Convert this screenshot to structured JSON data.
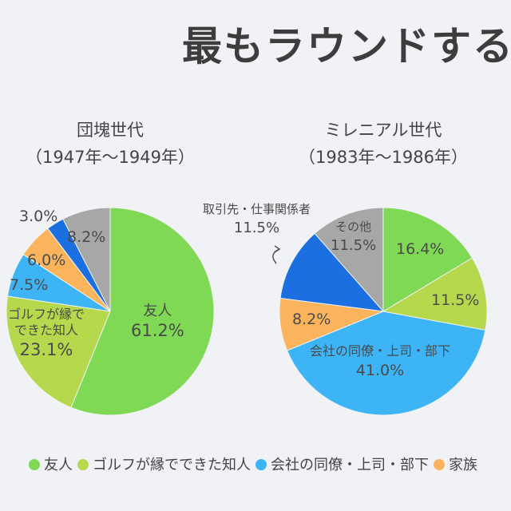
{
  "title": "最もラウンドする",
  "colors": {
    "友人": "#7fd955",
    "ゴルフが縁でできた知人": "#b6d84c",
    "会社の同僚・上司・部下": "#3db4f6",
    "家族": "#fbb45c",
    "取引先・仕事関係者": "#1b6fe0",
    "その他": "#a7a7a7"
  },
  "chart_data": [
    {
      "type": "pie",
      "title": "団塊世代",
      "subtitle": "（1947年〜1949年）",
      "slices": [
        {
          "category": "友人",
          "value": 61.2,
          "label": "61.2%"
        },
        {
          "category": "ゴルフが縁でできた知人",
          "value": 23.1,
          "label": "23.1%"
        },
        {
          "category": "会社の同僚・上司・部下",
          "value": 7.5,
          "label": "7.5%"
        },
        {
          "category": "家族",
          "value": 6.0,
          "label": "6.0%"
        },
        {
          "category": "取引先・仕事関係者",
          "value": 3.0,
          "label": "3.0%"
        },
        {
          "category": "その他",
          "value": 8.2,
          "label": "8.2%"
        }
      ],
      "inside_names": {
        "friend": "友人",
        "golf": "ゴルフが縁で\nできた知人"
      }
    },
    {
      "type": "pie",
      "title": "ミレニアル世代",
      "subtitle": "（1983年〜1986年）",
      "slices": [
        {
          "category": "友人",
          "value": 16.4,
          "label": "16.4%"
        },
        {
          "category": "ゴルフが縁でできた知人",
          "value": 11.5,
          "label": "11.5%"
        },
        {
          "category": "会社の同僚・上司・部下",
          "value": 41.0,
          "label": "41.0%"
        },
        {
          "category": "家族",
          "value": 8.2,
          "label": "8.2%"
        },
        {
          "category": "取引先・仕事関係者",
          "value": 11.5,
          "label": "11.5%"
        },
        {
          "category": "その他",
          "value": 11.5,
          "label": "11.5%"
        }
      ],
      "inside_names": {
        "company": "会社の同僚・上司・部下",
        "client": "取引先・仕事関係者",
        "other": "その他"
      }
    }
  ],
  "legend": [
    "友人",
    "ゴルフが縁でできた知人",
    "会社の同僚・上司・部下",
    "家族"
  ]
}
